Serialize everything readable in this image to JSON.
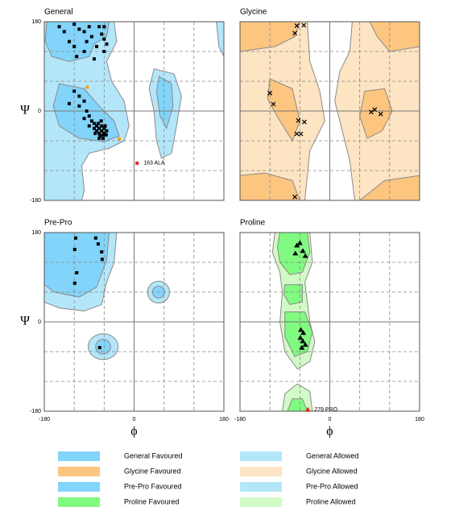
{
  "chart_data": [
    {
      "type": "scatter",
      "title": "General",
      "ylabel": "Ψ",
      "xlim": [
        -180,
        180
      ],
      "ylim": [
        -180,
        180
      ],
      "yticks": [
        180,
        0,
        -180
      ],
      "grid": [
        -120,
        -60,
        0,
        60,
        120
      ],
      "series": [
        {
          "color": "#000000",
          "marker": "square",
          "x": [
            -150,
            -140,
            -120,
            -110,
            -100,
            -95,
            -130,
            -85,
            -75,
            -70,
            -65,
            -60,
            -55,
            -60,
            -100,
            -120,
            -115,
            -80,
            -90,
            -60,
            -120,
            -110,
            -100,
            -95,
            -90,
            -85,
            -80,
            -75,
            -70,
            -65,
            -60,
            -70,
            -65,
            -60,
            -55,
            -75,
            -68,
            -62,
            -80,
            -58,
            -110,
            -130,
            -100,
            -90,
            -72,
            -66,
            -62,
            -56,
            -70,
            -78
          ],
          "values": [
            170,
            160,
            175,
            165,
            160,
            140,
            140,
            150,
            130,
            170,
            155,
            145,
            135,
            120,
            120,
            130,
            110,
            105,
            170,
            170,
            40,
            30,
            20,
            0,
            -10,
            -20,
            -25,
            -30,
            -35,
            -40,
            -45,
            -45,
            -30,
            -35,
            -40,
            -40,
            -50,
            -55,
            -35,
            -30,
            10,
            15,
            -15,
            -30,
            -25,
            -20,
            -48,
            -48,
            -55,
            -45
          ]
        },
        {
          "color": "#f5a020",
          "marker": "square",
          "x": [
            -94,
            -30
          ],
          "values": [
            48,
            -56
          ]
        },
        {
          "color": "#e8201c",
          "marker": "square",
          "x": [
            6
          ],
          "values": [
            -105
          ],
          "labels": [
            "163 ALA"
          ]
        }
      ]
    },
    {
      "type": "scatter",
      "title": "Glycine",
      "xlim": [
        -180,
        180
      ],
      "ylim": [
        -180,
        180
      ],
      "grid": [
        -120,
        -60,
        0,
        60,
        120
      ],
      "series": [
        {
          "color": "#000000",
          "marker": "x",
          "x": [
            -66,
            -70,
            -52,
            -120,
            -113,
            -63,
            -51,
            -66,
            -58,
            83,
            90,
            102,
            -70
          ],
          "values": [
            172,
            157,
            173,
            36,
            14,
            -19,
            -22,
            -46,
            -46,
            -2,
            3,
            -6,
            -173
          ]
        }
      ]
    },
    {
      "type": "scatter",
      "title": "Pre-Pro",
      "ylabel": "Ψ",
      "xlabel": "ϕ",
      "xlim": [
        -180,
        180
      ],
      "ylim": [
        -180,
        180
      ],
      "xticks": [
        -180,
        0,
        180
      ],
      "yticks": [
        180,
        0,
        -180
      ],
      "grid": [
        -120,
        -60,
        0,
        60,
        120
      ],
      "series": [
        {
          "color": "#000000",
          "marker": "square",
          "x": [
            -117,
            -119,
            -77,
            -72,
            -65,
            -64,
            -115,
            -119,
            -69
          ],
          "values": [
            169,
            146,
            169,
            157,
            141,
            126,
            99,
            78,
            -52
          ]
        }
      ]
    },
    {
      "type": "scatter",
      "title": "Proline",
      "xlabel": "ϕ",
      "xlim": [
        -180,
        180
      ],
      "ylim": [
        -180,
        180
      ],
      "xticks": [
        -180,
        0,
        180
      ],
      "grid": [
        -120,
        -60,
        0,
        60,
        120
      ],
      "series": [
        {
          "color": "#000000",
          "marker": "triangle",
          "x": [
            -66,
            -60,
            -54,
            -49,
            -69,
            -58,
            -53,
            -54,
            -49,
            -59,
            -56
          ],
          "values": [
            154,
            159,
            143,
            133,
            138,
            -16,
            -22,
            -39,
            -46,
            -32,
            -52
          ]
        },
        {
          "color": "#e8201c",
          "marker": "triangle",
          "x": [
            -44
          ],
          "values": [
            -177
          ],
          "labels": [
            "279 PRO"
          ]
        }
      ]
    }
  ],
  "legend": [
    {
      "name": "General Favoured",
      "color": "#82d4fa"
    },
    {
      "name": "Glycine Favoured",
      "color": "#fcc680"
    },
    {
      "name": "Pre-Pro Favoured",
      "color": "#82d4fa"
    },
    {
      "name": "Proline Favoured",
      "color": "#80fa80"
    },
    {
      "name": "General Allowed",
      "color": "#b4e6fa"
    },
    {
      "name": "Glycine Allowed",
      "color": "#fde4c2"
    },
    {
      "name": "Pre-Pro Allowed",
      "color": "#b4e6fa"
    },
    {
      "name": "Proline Allowed",
      "color": "#d2fac6"
    }
  ]
}
